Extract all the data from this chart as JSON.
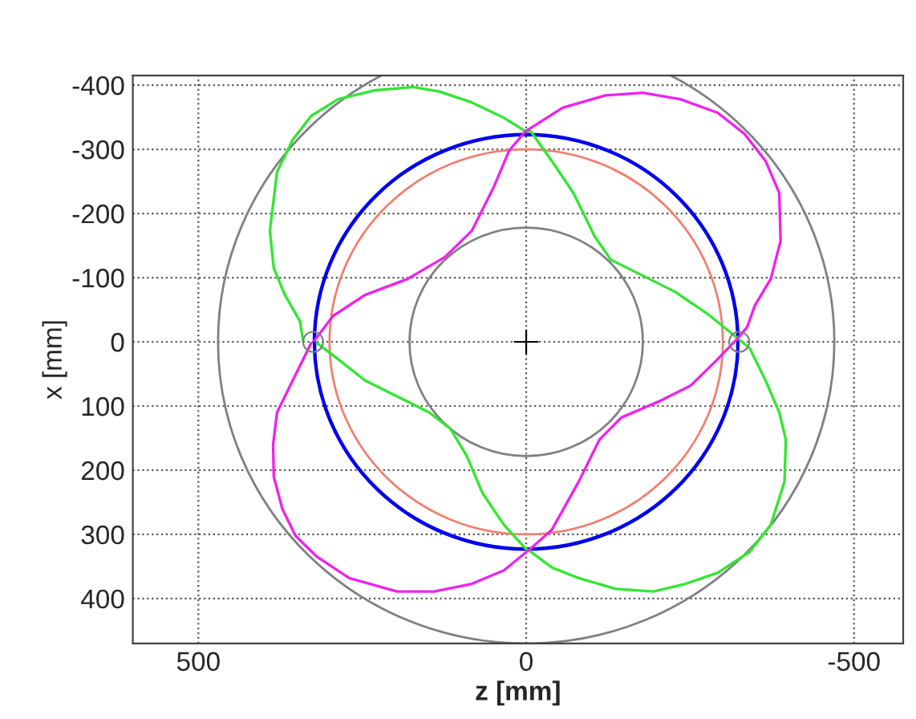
{
  "chart_data": {
    "type": "line",
    "xlabel": "z [mm]",
    "ylabel": "x [mm]",
    "xlim": [
      600,
      -575
    ],
    "ylim": [
      470,
      -415
    ],
    "xticks": [
      500,
      0,
      -500
    ],
    "yticks": [
      -400,
      -300,
      -200,
      -100,
      0,
      100,
      200,
      300,
      400
    ],
    "grid": true,
    "legend": false,
    "line_style": "solid",
    "series": [
      {
        "color": "#33e633",
        "x": [
          340,
          345,
          368,
          385,
          391,
          385,
          380,
          356,
          328,
          287,
          230,
          173,
          132,
          83,
          34,
          1,
          -7,
          -39,
          -72,
          -104,
          -129,
          -178,
          -227,
          -276,
          -316,
          -341,
          -365,
          -386,
          -396,
          -394,
          -373,
          -341,
          -292,
          -243,
          -194,
          -137,
          -80,
          -40,
          -7,
          1,
          34,
          67,
          91,
          116,
          148,
          197,
          246,
          287,
          319
        ],
        "values": [
          0,
          -32,
          -73,
          -115,
          -173,
          -223,
          -265,
          -315,
          -352,
          -378,
          -392,
          -397,
          -390,
          -373,
          -349,
          -328,
          -328,
          -282,
          -232,
          -165,
          -128,
          -103,
          -78,
          -44,
          -11,
          10,
          60,
          110,
          152,
          218,
          285,
          327,
          360,
          377,
          389,
          385,
          368,
          352,
          327,
          322,
          285,
          235,
          177,
          135,
          110,
          85,
          60,
          27,
          2
        ]
      },
      {
        "color": "#ee22ee",
        "x": [
          328,
          340,
          360,
          380,
          386,
          385,
          372,
          352,
          319,
          270,
          197,
          140,
          83,
          34,
          -7,
          -39,
          -80,
          -112,
          -145,
          -202,
          -251,
          -292,
          -324,
          -337,
          -349,
          -373,
          -388,
          -386,
          -365,
          -333,
          -292,
          -235,
          -178,
          -121,
          -56,
          1,
          26,
          50,
          83,
          124,
          181,
          246,
          295,
          323
        ],
        "values": [
          2,
          27,
          68,
          110,
          160,
          210,
          260,
          302,
          335,
          368,
          389,
          389,
          377,
          356,
          322,
          293,
          218,
          152,
          118,
          93,
          68,
          27,
          -7,
          -23,
          -57,
          -98,
          -157,
          -232,
          -282,
          -324,
          -357,
          -378,
          -388,
          -384,
          -365,
          -328,
          -298,
          -240,
          -173,
          -132,
          -98,
          -73,
          -40,
          -2
        ]
      },
      {
        "type": "scatter",
        "marker": "circle",
        "color": "#808080",
        "x": [
          325,
          -325
        ],
        "values": [
          0,
          0
        ]
      },
      {
        "type": "scatter",
        "marker": "cross",
        "color": "#000000",
        "x": [
          0
        ],
        "values": [
          0
        ]
      }
    ]
  }
}
